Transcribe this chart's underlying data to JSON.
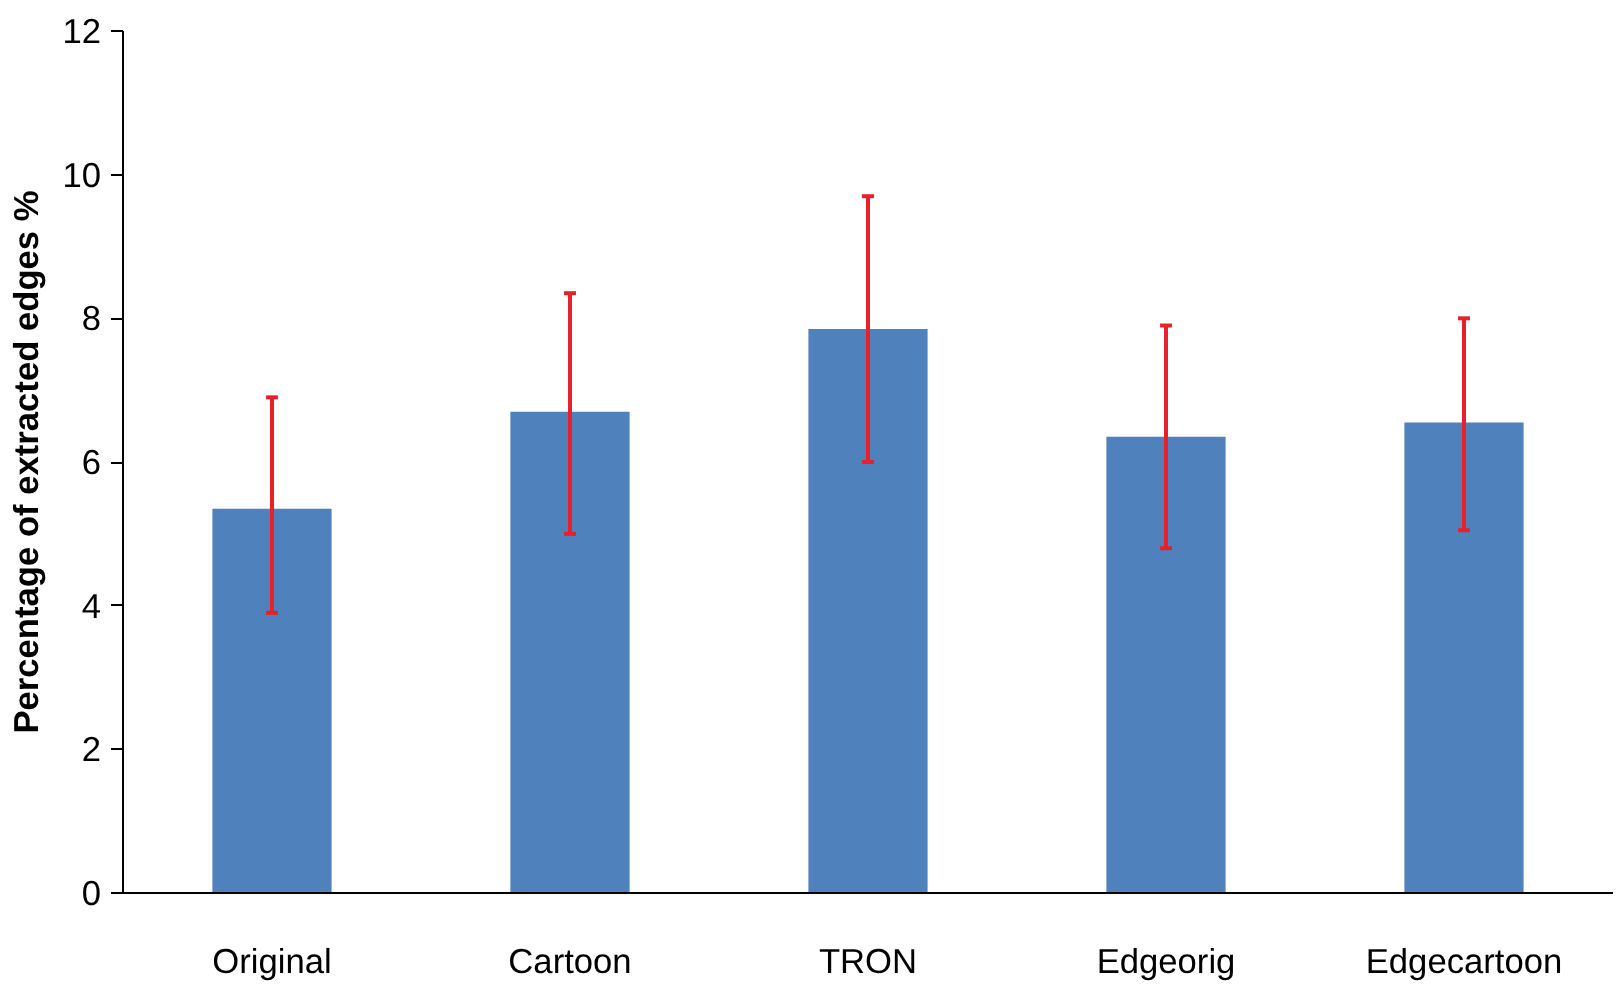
{
  "chart_data": {
    "type": "bar",
    "ylabel": "Percentage of extracted edges %",
    "categories": [
      "Original",
      "Cartoon",
      "TRON",
      "Edgeorig",
      "Edgecartoon"
    ],
    "values": [
      5.35,
      6.7,
      7.85,
      6.35,
      6.55
    ],
    "errors": [
      [
        3.9,
        6.9
      ],
      [
        5.0,
        8.35
      ],
      [
        6.0,
        9.7
      ],
      [
        4.8,
        7.9
      ],
      [
        5.05,
        8.0
      ]
    ],
    "color": "#4f81bd",
    "ylim": [
      0,
      12
    ],
    "yticks": [
      0,
      2,
      4,
      6,
      8,
      10,
      12
    ],
    "grid": false
  }
}
